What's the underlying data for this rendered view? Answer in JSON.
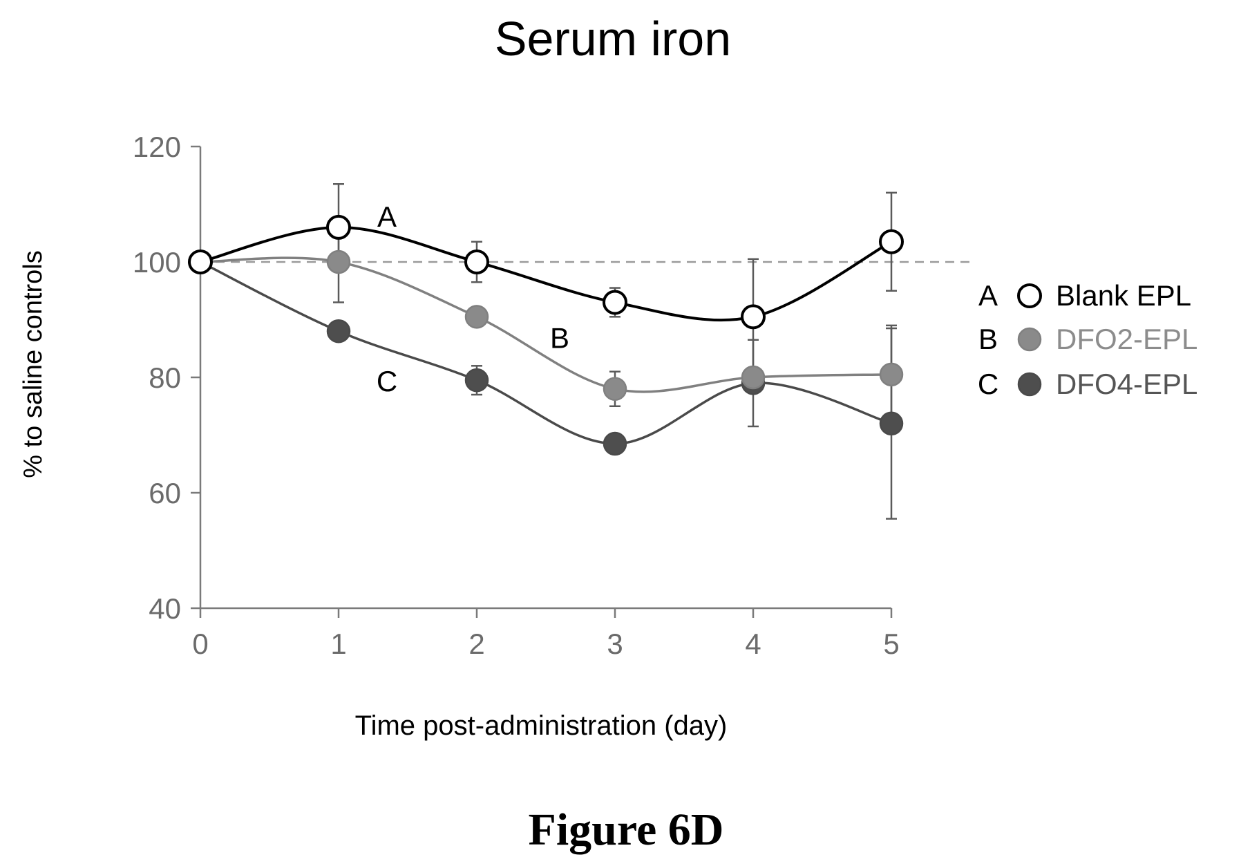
{
  "figure_caption": "Figure 6D",
  "chart_data": {
    "type": "line",
    "title": "Serum iron",
    "xlabel": "Time post-administration (day)",
    "ylabel": "% to saline controls",
    "x": [
      0,
      1,
      2,
      3,
      4,
      5
    ],
    "xlim": [
      0,
      5
    ],
    "ylim": [
      40,
      120
    ],
    "x_ticks": [
      "0",
      "1",
      "2",
      "3",
      "4",
      "5"
    ],
    "y_ticks": [
      "40",
      "60",
      "80",
      "100",
      "120"
    ],
    "grid": false,
    "legend_position": "right",
    "reference_line": {
      "y": 100,
      "style": "dashed"
    },
    "series": [
      {
        "key": "A",
        "name": "Blank EPL",
        "values": [
          100,
          106,
          100,
          93,
          90.5,
          103.5
        ],
        "error": [
          0,
          7.5,
          3.5,
          2.5,
          10,
          8.5
        ],
        "marker": "open-circle",
        "line_color": "#000000",
        "marker_fill": "#ffffff",
        "text_color": "#000000"
      },
      {
        "key": "B",
        "name": "DFO2-EPL",
        "values": [
          100,
          100,
          90.5,
          78,
          80,
          80.5
        ],
        "error": [
          0,
          7,
          0,
          3,
          0,
          8.5
        ],
        "marker": "filled-circle",
        "line_color": "#808080",
        "marker_fill": "#8a8a8a",
        "text_color": "#8c8c8c"
      },
      {
        "key": "C",
        "name": "DFO4-EPL",
        "values": [
          100,
          88,
          79.5,
          68.5,
          79,
          72
        ],
        "error": [
          0,
          0,
          2.5,
          0,
          7.5,
          16.5
        ],
        "marker": "filled-circle",
        "line_color": "#4a4a4a",
        "marker_fill": "#4e4e4e",
        "text_color": "#555555"
      }
    ]
  }
}
